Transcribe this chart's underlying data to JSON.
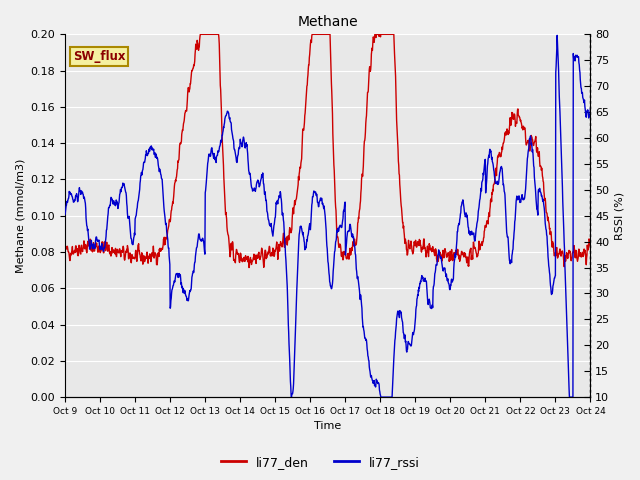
{
  "title": "Methane",
  "xlabel": "Time",
  "ylabel_left": "Methane (mmol/m3)",
  "ylabel_right": "RSSI (%)",
  "ylim_left": [
    0.0,
    0.2
  ],
  "ylim_right": [
    10,
    80
  ],
  "yticks_left": [
    0.0,
    0.02,
    0.04,
    0.06,
    0.08,
    0.1,
    0.12,
    0.14,
    0.16,
    0.18,
    0.2
  ],
  "yticks_right": [
    10,
    15,
    20,
    25,
    30,
    35,
    40,
    45,
    50,
    55,
    60,
    65,
    70,
    75,
    80
  ],
  "xtick_labels": [
    "Oct 9",
    "Oct 10",
    "Oct 11",
    "Oct 12",
    "Oct 13",
    "Oct 14",
    "Oct 15",
    "Oct 16",
    "Oct 17",
    "Oct 18",
    "Oct 19",
    "Oct 20",
    "Oct 21",
    "Oct 22",
    "Oct 23",
    "Oct 24"
  ],
  "color_red": "#cc0000",
  "color_blue": "#0000cc",
  "legend_label_red": "li77_den",
  "legend_label_blue": "li77_rssi",
  "annotation_text": "SW_flux",
  "annotation_bg": "#f5f0a0",
  "annotation_border": "#aa8800",
  "plot_bg_color": "#e8e8e8",
  "fig_bg_color": "#f0f0f0",
  "line_width": 1.0,
  "n_points": 1500,
  "seed_red": 42,
  "seed_blue": 99
}
